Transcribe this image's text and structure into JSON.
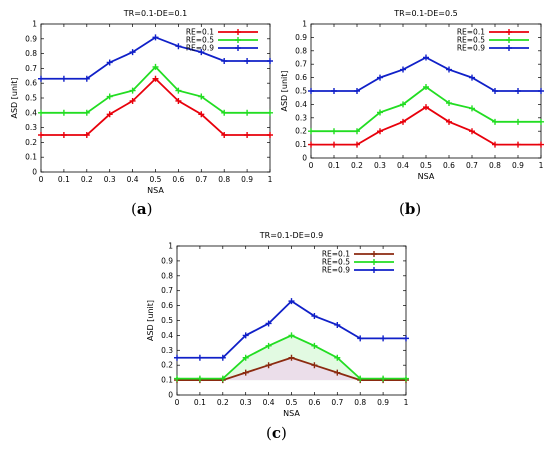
{
  "colors": {
    "RE=0.1": "#e8000b",
    "RE=0.5": "#22dd22",
    "RE=0.9": "#1020c8",
    "c_RE=0.1": "#8b2a10"
  },
  "chart_data": [
    {
      "type": "line",
      "panel_label": "a",
      "title": "TR=0.1-DE=0.1",
      "xlabel": "NSA",
      "ylabel": "ASD [unit]",
      "xlim": [
        0,
        1
      ],
      "ylim": [
        0,
        1
      ],
      "xticks": [
        "0",
        "0.1",
        "0.2",
        "0.3",
        "0.4",
        "0.5",
        "0.6",
        "0.7",
        "0.8",
        "0.9",
        "1"
      ],
      "yticks": [
        "0",
        "0.1",
        "0.2",
        "0.3",
        "0.4",
        "0.5",
        "0.6",
        "0.7",
        "0.8",
        "0.9",
        "1"
      ],
      "legend_position": "top-right",
      "x": [
        0,
        0.1,
        0.2,
        0.3,
        0.4,
        0.5,
        0.6,
        0.7,
        0.8,
        0.9,
        1
      ],
      "series": [
        {
          "name": "RE=0.1",
          "values": [
            0.25,
            0.25,
            0.25,
            0.39,
            0.48,
            0.63,
            0.48,
            0.39,
            0.25,
            0.25,
            0.25
          ]
        },
        {
          "name": "RE=0.5",
          "values": [
            0.4,
            0.4,
            0.4,
            0.51,
            0.55,
            0.71,
            0.55,
            0.51,
            0.4,
            0.4,
            0.4
          ]
        },
        {
          "name": "RE=0.9",
          "values": [
            0.63,
            0.63,
            0.63,
            0.74,
            0.81,
            0.91,
            0.85,
            0.81,
            0.75,
            0.75,
            0.75
          ]
        }
      ]
    },
    {
      "type": "line",
      "panel_label": "b",
      "title": "TR=0.1-DE=0.5",
      "xlabel": "NSA",
      "ylabel": "ASD [unit]",
      "xlim": [
        0,
        1
      ],
      "ylim": [
        0,
        1
      ],
      "xticks": [
        "0",
        "0.1",
        "0.2",
        "0.3",
        "0.4",
        "0.5",
        "0.6",
        "0.7",
        "0.8",
        "0.9",
        "1"
      ],
      "yticks": [
        "0",
        "0.1",
        "0.2",
        "0.3",
        "0.4",
        "0.5",
        "0.6",
        "0.7",
        "0.8",
        "0.9",
        "1"
      ],
      "legend_position": "top-right",
      "x": [
        0,
        0.1,
        0.2,
        0.3,
        0.4,
        0.5,
        0.6,
        0.7,
        0.8,
        0.9,
        1
      ],
      "series": [
        {
          "name": "RE=0.1",
          "values": [
            0.1,
            0.1,
            0.1,
            0.2,
            0.27,
            0.38,
            0.27,
            0.2,
            0.1,
            0.1,
            0.1
          ]
        },
        {
          "name": "RE=0.5",
          "values": [
            0.2,
            0.2,
            0.2,
            0.34,
            0.4,
            0.53,
            0.41,
            0.37,
            0.27,
            0.27,
            0.27
          ]
        },
        {
          "name": "RE=0.9",
          "values": [
            0.5,
            0.5,
            0.5,
            0.6,
            0.66,
            0.75,
            0.66,
            0.6,
            0.5,
            0.5,
            0.5
          ]
        }
      ]
    },
    {
      "type": "line",
      "panel_label": "c",
      "title": "TR=0.1-DE=0.9",
      "xlabel": "NSA",
      "ylabel": "ASD [unit]",
      "xlim": [
        0,
        1
      ],
      "ylim": [
        0,
        1
      ],
      "xticks": [
        "0",
        "0.1",
        "0.2",
        "0.3",
        "0.4",
        "0.5",
        "0.6",
        "0.7",
        "0.8",
        "0.9",
        "1"
      ],
      "yticks": [
        "0",
        "0.1",
        "0.2",
        "0.3",
        "0.4",
        "0.5",
        "0.6",
        "0.7",
        "0.8",
        "0.9",
        "1"
      ],
      "legend_position": "top-right",
      "x": [
        0,
        0.1,
        0.2,
        0.3,
        0.4,
        0.5,
        0.6,
        0.7,
        0.8,
        0.9,
        1
      ],
      "series": [
        {
          "name": "RE=0.1",
          "values": [
            0.1,
            0.1,
            0.1,
            0.15,
            0.2,
            0.25,
            0.2,
            0.15,
            0.1,
            0.1,
            0.1
          ]
        },
        {
          "name": "RE=0.5",
          "values": [
            0.11,
            0.11,
            0.11,
            0.25,
            0.33,
            0.4,
            0.33,
            0.25,
            0.11,
            0.11,
            0.11
          ]
        },
        {
          "name": "RE=0.9",
          "values": [
            0.25,
            0.25,
            0.25,
            0.4,
            0.48,
            0.63,
            0.53,
            0.47,
            0.38,
            0.38,
            0.38
          ]
        }
      ]
    }
  ]
}
